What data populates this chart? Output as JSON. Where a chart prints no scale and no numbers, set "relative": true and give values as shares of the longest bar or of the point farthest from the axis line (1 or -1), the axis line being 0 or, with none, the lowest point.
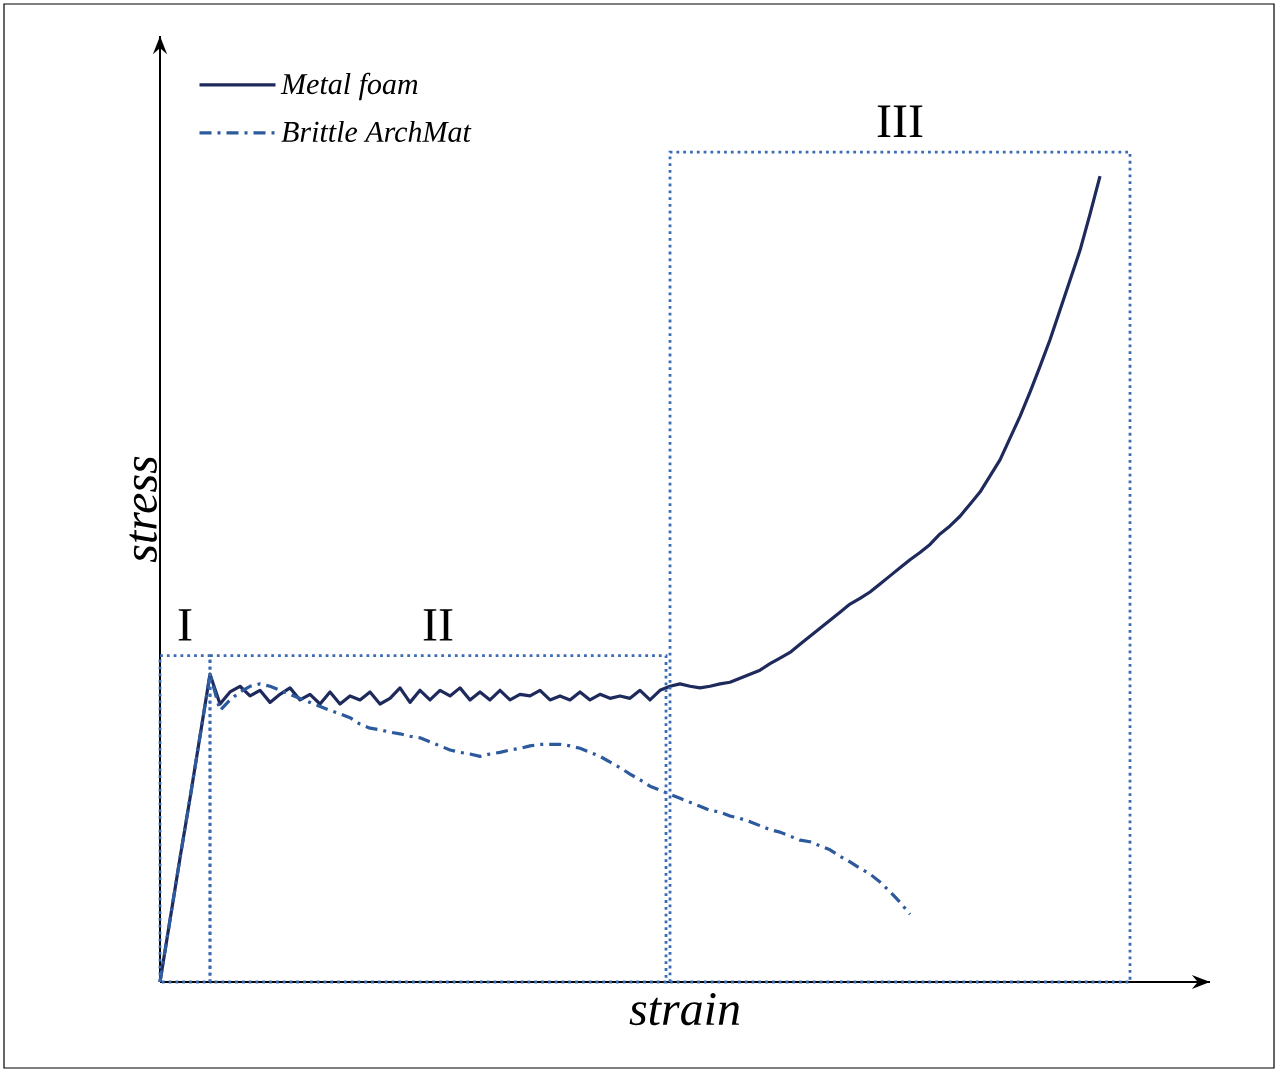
{
  "chart_data": {
    "type": "line",
    "relative": true,
    "xlabel": "strain",
    "ylabel": "stress",
    "legend": "top left",
    "categories": [
      null,
      null,
      null,
      null,
      null,
      null,
      null,
      null,
      null,
      null,
      null,
      null,
      null,
      null,
      null,
      null,
      null,
      null,
      null,
      null,
      null,
      null,
      null,
      null,
      null,
      null,
      null,
      null,
      null,
      null,
      null,
      null,
      null,
      null,
      null,
      null,
      null,
      null,
      null,
      null,
      null,
      null,
      null,
      null,
      null,
      null,
      null,
      null,
      null,
      null,
      null,
      null,
      null,
      null,
      null,
      null,
      null,
      null,
      null,
      null,
      null,
      null,
      null,
      null,
      null,
      null,
      null,
      null,
      null,
      null,
      null,
      null,
      null,
      null,
      null,
      null,
      null,
      null,
      null,
      null,
      null,
      null,
      null,
      null,
      null,
      null,
      null,
      null,
      null,
      null,
      null,
      null,
      null,
      null,
      null
    ],
    "series": [
      {
        "name": "Metal foam",
        "color": "#1f2a5c",
        "line_style": "solid",
        "values": [
          0,
          0.077,
          0.154,
          0.228,
          0.305,
          0.382,
          0.345,
          0.36,
          0.367,
          0.355,
          0.362,
          0.347,
          0.357,
          0.365,
          0.35,
          0.357,
          0.345,
          0.36,
          0.345,
          0.355,
          0.35,
          0.36,
          0.345,
          0.352,
          0.365,
          0.347,
          0.362,
          0.35,
          0.362,
          0.355,
          0.365,
          0.35,
          0.36,
          0.35,
          0.362,
          0.35,
          0.357,
          0.355,
          0.362,
          0.35,
          0.355,
          0.35,
          0.36,
          0.35,
          0.357,
          0.352,
          0.355,
          0.352,
          0.362,
          0.35,
          0.362,
          0.367,
          0.37,
          0.367,
          0.365,
          0.367,
          0.37,
          0.372,
          0.377,
          0.382,
          0.387,
          0.395,
          0.402,
          0.409,
          0.419,
          0.429,
          0.439,
          0.449,
          0.459,
          0.469,
          0.476,
          0.484,
          0.494,
          0.504,
          0.514,
          0.524,
          0.533,
          0.543,
          0.556,
          0.566,
          0.578,
          0.593,
          0.608,
          0.628,
          0.648,
          0.675,
          0.702,
          0.732,
          0.764,
          0.797,
          0.834,
          0.871,
          0.908,
          0.953,
          1.0
        ]
      },
      {
        "name": "Brittle ArchMat",
        "color": "#2d5a9c",
        "line_style": "dashdot",
        "values": [
          0,
          0.077,
          0.154,
          0.228,
          0.305,
          0.382,
          0.337,
          0.35,
          0.36,
          0.367,
          0.37,
          0.367,
          0.362,
          0.357,
          0.352,
          0.347,
          0.342,
          0.337,
          0.333,
          0.328,
          0.32,
          0.315,
          0.313,
          0.31,
          0.308,
          0.305,
          0.303,
          0.298,
          0.293,
          0.288,
          0.285,
          0.283,
          0.28,
          0.283,
          0.285,
          0.288,
          0.29,
          0.293,
          0.295,
          0.295,
          0.295,
          0.293,
          0.29,
          0.285,
          0.28,
          0.273,
          0.266,
          0.258,
          0.251,
          0.243,
          0.238,
          0.233,
          0.228,
          0.223,
          0.218,
          0.213,
          0.211,
          0.206,
          0.203,
          0.199,
          0.194,
          0.189,
          0.186,
          0.181,
          0.176,
          0.174,
          0.169,
          0.164,
          0.156,
          0.149,
          0.141,
          0.134,
          0.124,
          0.112,
          0.099,
          0.084,
          null,
          null,
          null,
          null,
          null,
          null,
          null,
          null,
          null,
          null,
          null,
          null,
          null,
          null,
          null,
          null,
          null,
          null,
          null
        ]
      }
    ],
    "annotations": [
      "I",
      "II",
      "III"
    ]
  }
}
